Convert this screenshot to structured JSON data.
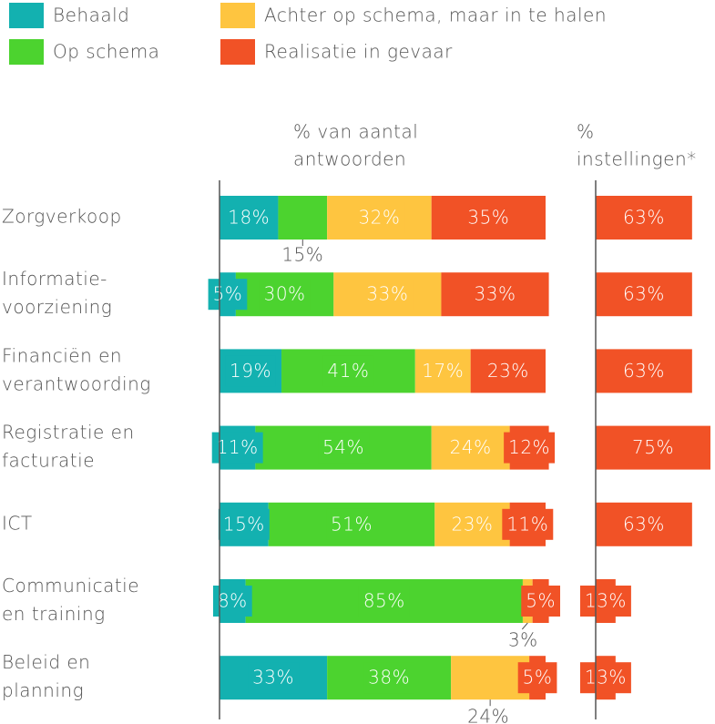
{
  "chart_data": [
    {
      "type": "stacked_bar_horizontal",
      "y_label": [
        "% van aantal",
        "antwoorden"
      ],
      "categories": [
        [
          "Zorgverkoop"
        ],
        [
          "Informatie-",
          "voorziening"
        ],
        [
          "Financiën en",
          "verantwoording"
        ],
        [
          "Registratie en",
          "facturatie"
        ],
        [
          "ICT"
        ],
        [
          "Communicatie",
          "en training"
        ],
        [
          "Beleid en",
          "planning"
        ]
      ],
      "xlim": [
        0,
        100
      ],
      "series": [
        {
          "name": "Behaald",
          "color": "#13b1b0",
          "values": [
            18,
            5,
            19,
            11,
            15,
            8,
            33
          ],
          "value_labels": [
            "18%",
            "5%",
            "19%",
            "11%",
            "15%",
            "8%",
            "33%"
          ]
        },
        {
          "name": "Op schema",
          "color": "#4cd32f",
          "values": [
            15,
            30,
            41,
            54,
            51,
            85,
            38
          ],
          "value_labels": [
            "15%",
            "30%",
            "41%",
            "54%",
            "51%",
            "85%",
            "38%"
          ]
        },
        {
          "name": "Achter op schema, maar in te halen",
          "color": "#fec540",
          "values": [
            32,
            33,
            17,
            24,
            23,
            3,
            24
          ],
          "value_labels": [
            "32%",
            "33%",
            "17%",
            "24%",
            "23%",
            "3%",
            "24%"
          ]
        },
        {
          "name": "Realisatie in gevaar",
          "color": "#f15226",
          "values": [
            35,
            33,
            23,
            12,
            11,
            5,
            5
          ],
          "value_labels": [
            "35%",
            "33%",
            "23%",
            "12%",
            "11%",
            "5%",
            "5%"
          ]
        }
      ]
    },
    {
      "type": "bar_horizontal",
      "y_label": [
        "%",
        "instellingen*"
      ],
      "xlim": [
        0,
        100
      ],
      "color": "#f15226",
      "values": [
        63,
        63,
        63,
        75,
        63,
        13,
        13
      ],
      "value_labels": [
        "63%",
        "63%",
        "63%",
        "75%",
        "63%",
        "13%",
        "13%"
      ]
    }
  ]
}
